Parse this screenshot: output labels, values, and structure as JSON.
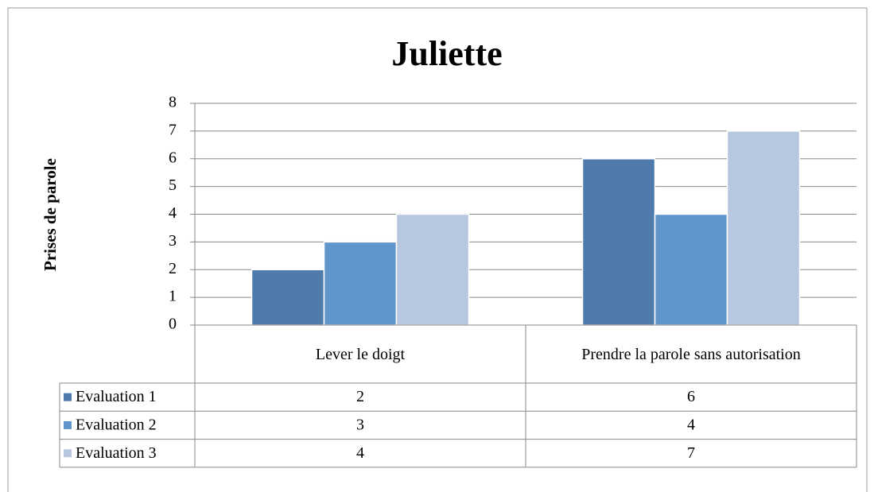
{
  "chart_data": {
    "type": "bar",
    "title": "Juliette",
    "y_label": "Prises de parole",
    "categories": [
      "Lever le doigt",
      "Prendre la parole sans autorisation"
    ],
    "series": [
      {
        "name": "Evaluation 1",
        "color": "#4f7bac",
        "values": [
          2,
          6
        ]
      },
      {
        "name": "Evaluation 2",
        "color": "#6096cc",
        "values": [
          3,
          4
        ]
      },
      {
        "name": "Evaluation 3",
        "color": "#b8c7e0",
        "values": [
          4,
          7
        ]
      }
    ],
    "ylim": [
      0,
      8
    ],
    "yticks": [
      0,
      1,
      2,
      3,
      4,
      5,
      6,
      7,
      8
    ],
    "grid": true,
    "data_table": true
  }
}
